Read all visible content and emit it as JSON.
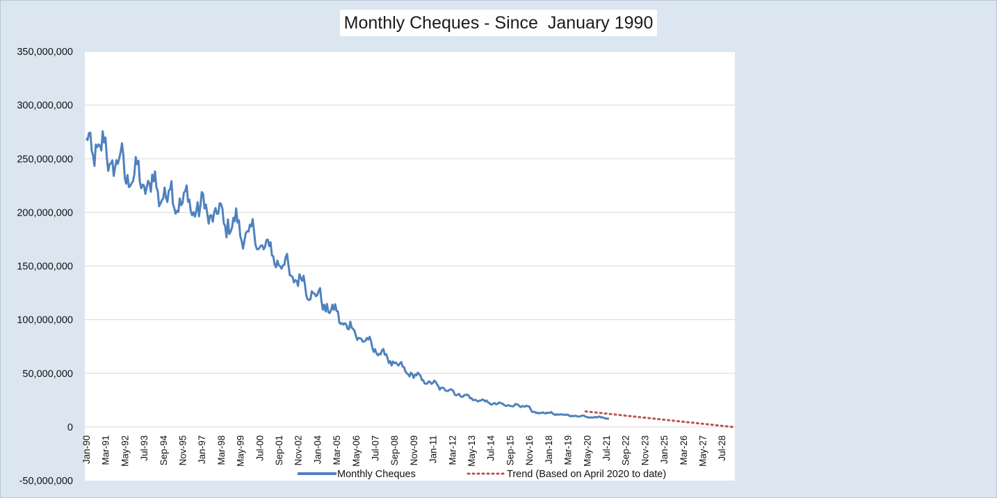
{
  "chart_data": {
    "type": "line",
    "title": "Monthly Cheques - Since  January 1990",
    "xlabel": "",
    "ylabel": "",
    "ylim": [
      -50000000,
      350000000
    ],
    "y_ticks": [
      -50000000,
      0,
      50000000,
      100000000,
      150000000,
      200000000,
      250000000,
      300000000,
      350000000
    ],
    "y_tick_labels": [
      "-50,000,000",
      "0",
      "50,000,000",
      "100,000,000",
      "150,000,000",
      "200,000,000",
      "250,000,000",
      "300,000,000",
      "350,000,000"
    ],
    "x_tick_labels": [
      "Jan-90",
      "Mar-91",
      "May-92",
      "Jul-93",
      "Sep-94",
      "Nov-95",
      "Jan-97",
      "Mar-98",
      "May-99",
      "Jul-00",
      "Sep-01",
      "Nov-02",
      "Jan-04",
      "Mar-05",
      "May-06",
      "Jul-07",
      "Sep-08",
      "Nov-09",
      "Jan-11",
      "Mar-12",
      "May-13",
      "Jul-14",
      "Sep-15",
      "Nov-16",
      "Jan-18",
      "Mar-19",
      "May-20",
      "Jul-21",
      "Sep-22",
      "Nov-23",
      "Jan-25",
      "Mar-26",
      "May-27",
      "Jul-28"
    ],
    "x_range_months": [
      0,
      470
    ],
    "grid": true,
    "legend_position": "bottom",
    "series": [
      {
        "name": "Monthly Cheques",
        "style": "solid",
        "color": "#4f81bd",
        "x_month_index": [
          0,
          6,
          12,
          18,
          24,
          30,
          36,
          42,
          48,
          54,
          60,
          66,
          72,
          78,
          84,
          90,
          96,
          102,
          108,
          114,
          120,
          126,
          132,
          138,
          144,
          150,
          156,
          162,
          168,
          174,
          180,
          186,
          192,
          198,
          204,
          210,
          216,
          222,
          228,
          234,
          240,
          246,
          252,
          258,
          264,
          270,
          276,
          282,
          288,
          294,
          300,
          306,
          312,
          318,
          322,
          323,
          324,
          330,
          336,
          342,
          348,
          354,
          360,
          366,
          372,
          378,
          380
        ],
        "values": [
          255000000,
          262000000,
          258000000,
          248000000,
          245000000,
          238000000,
          232000000,
          228000000,
          224000000,
          220000000,
          216000000,
          212000000,
          209000000,
          206000000,
          203000000,
          200000000,
          196000000,
          192000000,
          187000000,
          182000000,
          178000000,
          172000000,
          165000000,
          158000000,
          150000000,
          142000000,
          135000000,
          128000000,
          121000000,
          114000000,
          107000000,
          99000000,
          92000000,
          85000000,
          79000000,
          73000000,
          67000000,
          61000000,
          56000000,
          51000000,
          47000000,
          43500000,
          40000000,
          37000000,
          34000000,
          31000000,
          28500000,
          26000000,
          24000000,
          22500000,
          21000000,
          20500000,
          20000000,
          19500000,
          19000000,
          16000000,
          13000000,
          13500000,
          13000000,
          12000000,
          11000000,
          10500000,
          10000000,
          9500000,
          9000000,
          8500000,
          8000000
        ],
        "seasonal_variation": "strong month-to-month oscillation, approx ±10% of level"
      },
      {
        "name": "Trend (Based on April 2020 to date)",
        "style": "dotted",
        "color": "#c0504d",
        "x_month_index": [
          363,
          470
        ],
        "values": [
          14500000,
          0
        ]
      }
    ]
  }
}
